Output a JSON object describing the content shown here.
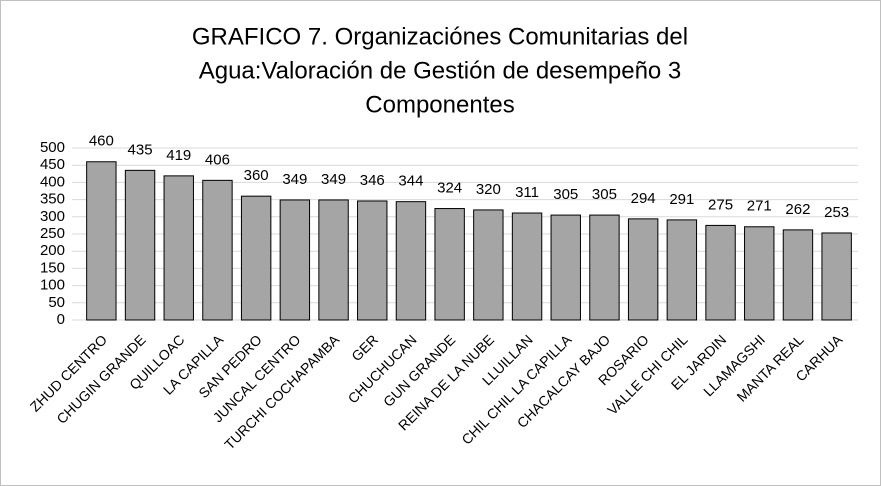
{
  "chart_data": {
    "type": "bar",
    "title": [
      "GRAFICO 7. Organizaciónes Comunitarias del",
      "Agua:Valoración de Gestión de desempeño 3",
      "Componentes"
    ],
    "categories": [
      "ZHUD CENTRO",
      "CHUGIN GRANDE",
      "QUILLOAC",
      "LA CAPILLA",
      "SAN PEDRO",
      "JUNCAL CENTRO",
      "TURCHI COCHAPAMBA",
      "GER",
      "CHUCHUCAN",
      "GUN GRANDE",
      "REINA DE LA NUBE",
      "LLUILLAN",
      "CHIL CHIL LA CAPILLA",
      "CHACALCAY BAJO",
      "ROSARIO",
      "VALLE CHI CHIL",
      "EL JARDIN",
      "LLAMAGSHI",
      "MANTA REAL",
      "CARHUA"
    ],
    "values": [
      460,
      435,
      419,
      406,
      360,
      349,
      349,
      346,
      344,
      324,
      320,
      311,
      305,
      305,
      294,
      291,
      275,
      271,
      262,
      253
    ],
    "color": "#a5a5a5",
    "ylim": [
      0,
      500
    ],
    "yticks": [
      0,
      50,
      100,
      150,
      200,
      250,
      300,
      350,
      400,
      450,
      500
    ],
    "grid": true
  }
}
